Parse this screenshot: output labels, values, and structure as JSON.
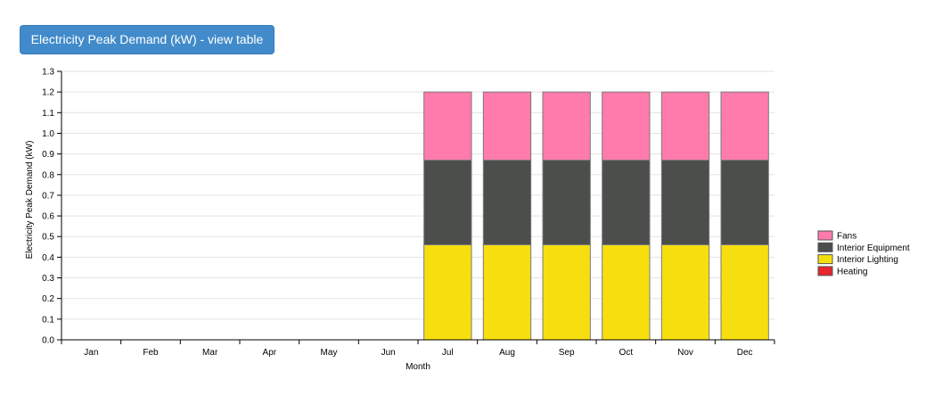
{
  "toolbar": {
    "view_table_label": "Electricity Peak Demand (kW) - view table"
  },
  "chart_data": {
    "type": "bar",
    "stacked": true,
    "categories": [
      "Jan",
      "Feb",
      "Mar",
      "Apr",
      "May",
      "Jun",
      "Jul",
      "Aug",
      "Sep",
      "Oct",
      "Nov",
      "Dec"
    ],
    "series": [
      {
        "name": "Heating",
        "color": "#e8262b",
        "values": [
          0,
          0,
          0,
          0,
          0,
          0,
          0,
          0,
          0,
          0,
          0,
          0
        ]
      },
      {
        "name": "Interior Lighting",
        "color": "#f7df0f",
        "values": [
          0,
          0,
          0,
          0,
          0,
          0,
          0.46,
          0.46,
          0.46,
          0.46,
          0.46,
          0.46
        ]
      },
      {
        "name": "Interior Equipment",
        "color": "#4c4e4b",
        "values": [
          0,
          0,
          0,
          0,
          0,
          0,
          0.41,
          0.41,
          0.41,
          0.41,
          0.41,
          0.41
        ]
      },
      {
        "name": "Fans",
        "color": "#ff7bac",
        "values": [
          0,
          0,
          0,
          0,
          0,
          0,
          0.33,
          0.33,
          0.33,
          0.33,
          0.33,
          0.33
        ]
      }
    ],
    "legend_order": [
      "Fans",
      "Interior Equipment",
      "Interior Lighting",
      "Heating"
    ],
    "xlabel": "Month",
    "ylabel": "Electricity Peak Demand (kW)",
    "ylim": [
      0,
      1.3
    ],
    "yticks": [
      "0.0",
      "0.1",
      "0.2",
      "0.3",
      "0.4",
      "0.5",
      "0.6",
      "0.7",
      "0.8",
      "0.9",
      "1.0",
      "1.1",
      "1.2",
      "1.3"
    ],
    "grid": true,
    "legend_position": "right"
  }
}
